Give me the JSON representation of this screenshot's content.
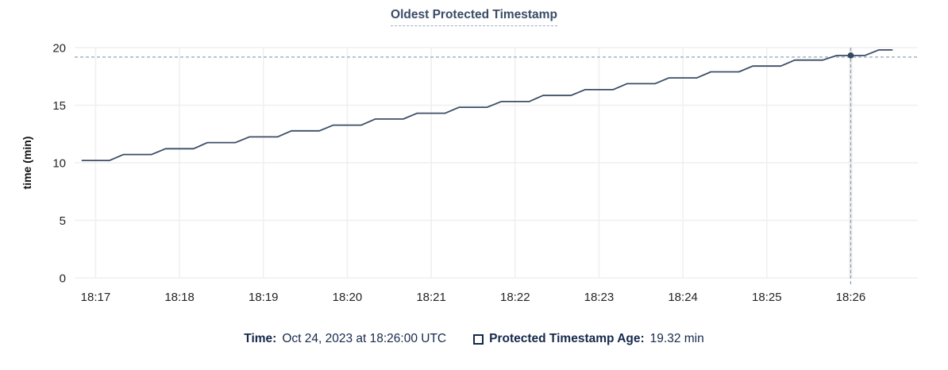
{
  "header": {
    "title": "Oldest Protected Timestamp"
  },
  "colors": {
    "series_line": "#3c4d66",
    "highlight_dot": "#35465e",
    "crosshair_dashed": "#91a5b4",
    "hover_band": "#ebebeb",
    "gridline": "#efefef",
    "axis_text": "#242424",
    "title_text": "#3a4c66",
    "legend_text": "#15294b",
    "background": "#ffffff"
  },
  "chart_data": {
    "type": "line",
    "title": "Oldest Protected Timestamp",
    "xlabel": "",
    "ylabel": "time (min)",
    "ylim": [
      0,
      20
    ],
    "yticks": [
      0,
      5,
      10,
      15,
      20
    ],
    "xticks": [
      "18:17",
      "18:18",
      "18:19",
      "18:20",
      "18:21",
      "18:22",
      "18:23",
      "18:24",
      "18:25",
      "18:26"
    ],
    "x_domain": [
      "18:16:45",
      "18:26:48"
    ],
    "grid": true,
    "legend_position": "bottom",
    "series": [
      {
        "name": "Protected Timestamp Age",
        "unit": "min",
        "x": [
          "18:16:50",
          "18:17:00",
          "18:17:10",
          "18:17:20",
          "18:17:30",
          "18:17:40",
          "18:17:50",
          "18:18:00",
          "18:18:10",
          "18:18:20",
          "18:18:30",
          "18:18:40",
          "18:18:50",
          "18:19:00",
          "18:19:10",
          "18:19:20",
          "18:19:30",
          "18:19:40",
          "18:19:50",
          "18:20:00",
          "18:20:10",
          "18:20:20",
          "18:20:30",
          "18:20:40",
          "18:20:50",
          "18:21:00",
          "18:21:10",
          "18:21:20",
          "18:21:30",
          "18:21:40",
          "18:21:50",
          "18:22:00",
          "18:22:10",
          "18:22:20",
          "18:22:30",
          "18:22:40",
          "18:22:50",
          "18:23:00",
          "18:23:10",
          "18:23:20",
          "18:23:30",
          "18:23:40",
          "18:23:50",
          "18:24:00",
          "18:24:10",
          "18:24:20",
          "18:24:30",
          "18:24:40",
          "18:24:50",
          "18:25:00",
          "18:25:10",
          "18:25:20",
          "18:25:30",
          "18:25:40",
          "18:25:50",
          "18:26:00",
          "18:26:10",
          "18:26:20",
          "18:26:30"
        ],
        "values": [
          10.2,
          10.2,
          10.2,
          10.72,
          10.72,
          10.72,
          11.22,
          11.22,
          11.22,
          11.75,
          11.75,
          11.75,
          12.25,
          12.25,
          12.25,
          12.77,
          12.77,
          12.77,
          13.27,
          13.27,
          13.27,
          13.8,
          13.8,
          13.8,
          14.3,
          14.3,
          14.3,
          14.82,
          14.82,
          14.82,
          15.32,
          15.32,
          15.32,
          15.85,
          15.85,
          15.85,
          16.35,
          16.35,
          16.35,
          16.87,
          16.87,
          16.87,
          17.37,
          17.37,
          17.37,
          17.9,
          17.9,
          17.9,
          18.4,
          18.4,
          18.4,
          18.92,
          18.92,
          18.92,
          19.32,
          19.32,
          19.32,
          19.8,
          19.8
        ]
      }
    ],
    "highlight": {
      "x": "18:26:00",
      "y": 19.32,
      "crosshair_horizontal": true,
      "crosshair_vertical": true
    }
  },
  "legend": {
    "time_label": "Time:",
    "time_value": "Oct 24, 2023 at 18:26:00 UTC",
    "series_label": "Protected Timestamp Age:",
    "series_value": "19.32 min"
  }
}
